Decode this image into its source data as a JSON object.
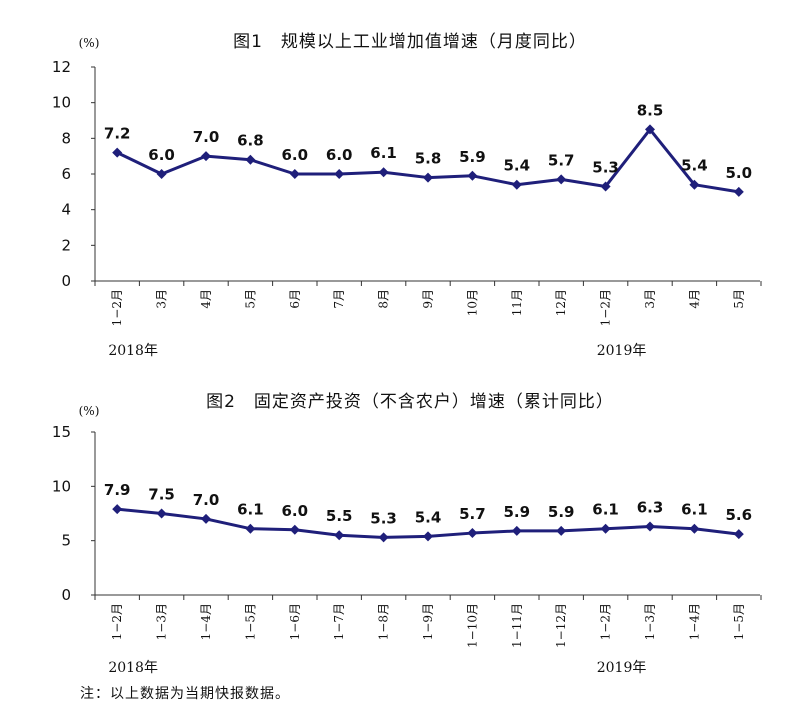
{
  "note": "注：以上数据为当期快报数据。",
  "chart_data": [
    {
      "type": "line",
      "title": "图1　规模以上工业增加值增速（月度同比）",
      "unit_label": "(%)",
      "ylim": [
        0,
        12
      ],
      "yticks": [
        "0",
        "2",
        "4",
        "6",
        "8",
        "10",
        "12"
      ],
      "categories": [
        "1−2月",
        "3月",
        "4月",
        "5月",
        "6月",
        "7月",
        "8月",
        "9月",
        "10月",
        "11月",
        "12月",
        "1−2月",
        "3月",
        "4月",
        "5月"
      ],
      "values": [
        7.2,
        6.0,
        7.0,
        6.8,
        6.0,
        6.0,
        6.1,
        5.8,
        5.9,
        5.4,
        5.7,
        5.3,
        8.5,
        5.4,
        5.0
      ],
      "labels": [
        "7.2",
        "6.0",
        "7.0",
        "6.8",
        "6.0",
        "6.0",
        "6.1",
        "5.8",
        "5.9",
        "5.4",
        "5.7",
        "5.3",
        "8.5",
        "5.4",
        "5.0"
      ],
      "years": [
        {
          "label": "2018年",
          "index": 0
        },
        {
          "label": "2019年",
          "index": 11
        }
      ],
      "grid": false,
      "color": "#1f1f7a"
    },
    {
      "type": "line",
      "title": "图2　固定资产投资（不含农户）增速（累计同比）",
      "unit_label": "(%)",
      "ylim": [
        0,
        15
      ],
      "yticks": [
        "0",
        "5",
        "10",
        "15"
      ],
      "categories": [
        "1−2月",
        "1−3月",
        "1−4月",
        "1−5月",
        "1−6月",
        "1−7月",
        "1−8月",
        "1−9月",
        "1−10月",
        "1−11月",
        "1−12月",
        "1−2月",
        "1−3月",
        "1−4月",
        "1−5月"
      ],
      "values": [
        7.9,
        7.5,
        7.0,
        6.1,
        6.0,
        5.5,
        5.3,
        5.4,
        5.7,
        5.9,
        5.9,
        6.1,
        6.3,
        6.1,
        5.6
      ],
      "labels": [
        "7.9",
        "7.5",
        "7.0",
        "6.1",
        "6.0",
        "5.5",
        "5.3",
        "5.4",
        "5.7",
        "5.9",
        "5.9",
        "6.1",
        "6.3",
        "6.1",
        "5.6"
      ],
      "years": [
        {
          "label": "2018年",
          "index": 0
        },
        {
          "label": "2019年",
          "index": 11
        }
      ],
      "grid": false,
      "color": "#1f1f7a"
    }
  ]
}
